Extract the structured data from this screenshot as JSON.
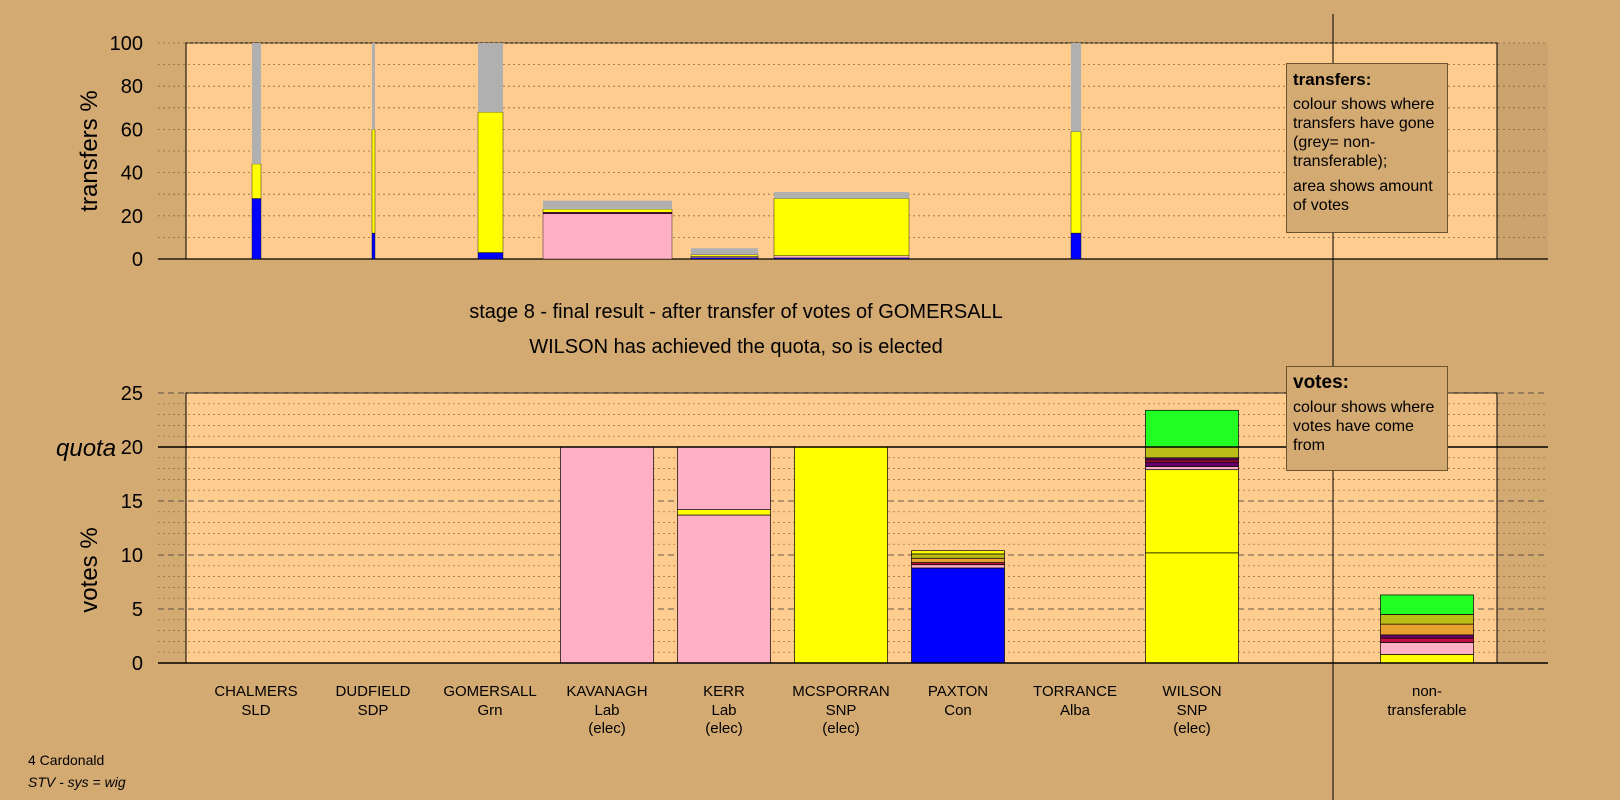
{
  "colors": {
    "background": "#d4aa73",
    "plot_area": "#ffcc8f",
    "SLD": "#e8a030",
    "SDP": "#c01040",
    "Grn": "#22ff22",
    "Lab": "#ffb0c4",
    "SNP": "#ffff00",
    "Con": "#0000ff",
    "Alba": "#660066",
    "Ind": "#bcbc18",
    "non_transferable": "#b0b0b0"
  },
  "legend_transfers": {
    "title": "transfers:",
    "p1": "colour shows where transfers have gone (grey= non-transferable);",
    "p2": "area shows amount of votes"
  },
  "legend_votes": {
    "title": "votes:",
    "p1": "colour shows where votes have come from"
  },
  "footer": {
    "ward": "4 Cardonald",
    "system": "STV - sys = wig"
  },
  "chart_data": [
    {
      "type": "bar",
      "subtype": "stacked-variable-width",
      "ylabel": "transfers %",
      "ylim": [
        0,
        100
      ],
      "yticks": [
        0,
        20,
        40,
        60,
        80,
        100
      ],
      "grid": true,
      "categories": [
        "CHALMERS",
        "DUDFIELD",
        "GOMERSALL",
        "KAVANAGH",
        "KERR",
        "MCSPORRAN",
        "PAXTON",
        "TORRANCE",
        "WILSON"
      ],
      "bars": [
        {
          "candidate": "CHALMERS",
          "segments": [
            {
              "party": "Con",
              "value": 28
            },
            {
              "party": "SNP",
              "value": 16
            },
            {
              "party": "non_transferable",
              "value": 56
            }
          ]
        },
        {
          "candidate": "DUDFIELD",
          "segments": [
            {
              "party": "Con",
              "value": 12
            },
            {
              "party": "SNP",
              "value": 48
            },
            {
              "party": "non_transferable",
              "value": 40
            }
          ]
        },
        {
          "candidate": "GOMERSALL",
          "segments": [
            {
              "party": "Con",
              "value": 3
            },
            {
              "party": "SNP",
              "value": 65
            },
            {
              "party": "non_transferable",
              "value": 32
            }
          ]
        },
        {
          "candidate": "KAVANAGH",
          "segments": [
            {
              "party": "Lab",
              "value": 21
            },
            {
              "party": "Alba",
              "value": 0.6
            },
            {
              "party": "SNP",
              "value": 1.4
            },
            {
              "party": "non_transferable",
              "value": 4
            }
          ]
        },
        {
          "candidate": "KERR",
          "segments": [
            {
              "party": "Con",
              "value": 0.6
            },
            {
              "party": "Lab",
              "value": 0.6
            },
            {
              "party": "SNP",
              "value": 0.8
            },
            {
              "party": "non_transferable",
              "value": 3
            }
          ]
        },
        {
          "candidate": "MCSPORRAN",
          "segments": [
            {
              "party": "Con",
              "value": 0.5
            },
            {
              "party": "Lab",
              "value": 1
            },
            {
              "party": "SNP",
              "value": 26.5
            },
            {
              "party": "non_transferable",
              "value": 3
            }
          ]
        },
        {
          "candidate": "PAXTON",
          "segments": []
        },
        {
          "candidate": "TORRANCE",
          "segments": [
            {
              "party": "Con",
              "value": 12
            },
            {
              "party": "SNP",
              "value": 47
            },
            {
              "party": "non_transferable",
              "value": 41
            }
          ]
        },
        {
          "candidate": "WILSON",
          "segments": []
        }
      ]
    },
    {
      "type": "bar",
      "subtype": "stacked",
      "ylabel": "votes %",
      "ylim": [
        0,
        25
      ],
      "yticks": [
        0,
        5,
        10,
        15,
        20,
        25
      ],
      "quota": 20,
      "quota_label": "quota",
      "grid": true,
      "candidates": [
        {
          "name": "CHALMERS",
          "party": "SLD",
          "elected": "",
          "segments": []
        },
        {
          "name": "DUDFIELD",
          "party": "SDP",
          "elected": "",
          "segments": []
        },
        {
          "name": "GOMERSALL",
          "party": "Grn",
          "elected": "",
          "segments": []
        },
        {
          "name": "KAVANAGH",
          "party": "Lab",
          "elected": "(elec)",
          "segments": [
            {
              "party": "Lab",
              "value": 20
            }
          ]
        },
        {
          "name": "KERR",
          "party": "Lab",
          "elected": "(elec)",
          "segments": [
            {
              "party": "Lab",
              "value": 13.7
            },
            {
              "party": "SNP",
              "value": 0.5
            },
            {
              "party": "Lab",
              "value": 5.8
            }
          ]
        },
        {
          "name": "MCSPORRAN",
          "party": "SNP",
          "elected": "(elec)",
          "segments": [
            {
              "party": "SNP",
              "value": 20
            }
          ]
        },
        {
          "name": "PAXTON",
          "party": "Con",
          "elected": "",
          "segments": [
            {
              "party": "Con",
              "value": 8.8
            },
            {
              "party": "Lab",
              "value": 0.3
            },
            {
              "party": "SDP",
              "value": 0.2
            },
            {
              "party": "SLD",
              "value": 0.4
            },
            {
              "party": "Ind",
              "value": 0.4
            },
            {
              "party": "SNP",
              "value": 0.3
            }
          ]
        },
        {
          "name": "TORRANCE",
          "party": "Alba",
          "elected": "",
          "segments": []
        },
        {
          "name": "WILSON",
          "party": "SNP",
          "elected": "(elec)",
          "segments": [
            {
              "party": "SNP",
              "value": 10.2
            },
            {
              "party": "SNP",
              "value": 7.7
            },
            {
              "party": "Lab",
              "value": 0.3
            },
            {
              "party": "Alba",
              "value": 0.4
            },
            {
              "party": "SDP",
              "value": 0.2
            },
            {
              "party": "Alba",
              "value": 0.2
            },
            {
              "party": "Ind",
              "value": 1.0
            },
            {
              "party": "Grn",
              "value": 3.4
            }
          ]
        }
      ],
      "non_transferable": {
        "label_line1": "non-",
        "label_line2": "transferable",
        "segments": [
          {
            "party": "SNP",
            "value": 0.8
          },
          {
            "party": "Lab",
            "value": 1.1
          },
          {
            "party": "SDP",
            "value": 0.4
          },
          {
            "party": "Alba",
            "value": 0.3
          },
          {
            "party": "SLD",
            "value": 1.0
          },
          {
            "party": "Ind",
            "value": 0.9
          },
          {
            "party": "Grn",
            "value": 1.8
          }
        ]
      }
    }
  ],
  "stage": {
    "line1": "stage 8 - final result - after transfer of votes of GOMERSALL",
    "line2": "WILSON has achieved the quota, so is elected"
  }
}
